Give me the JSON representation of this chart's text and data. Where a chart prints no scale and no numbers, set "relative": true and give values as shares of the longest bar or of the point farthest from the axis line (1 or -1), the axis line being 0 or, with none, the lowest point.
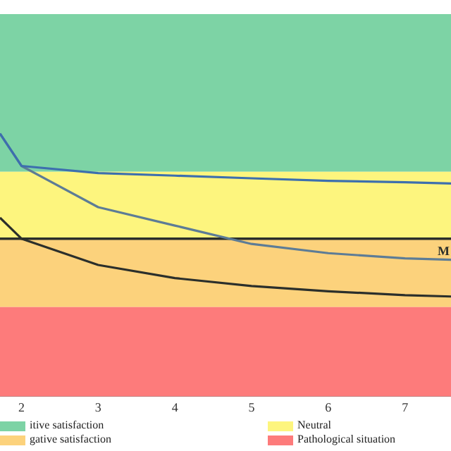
{
  "chart_data": {
    "type": "line",
    "relative": true,
    "x": [
      1.72,
      2,
      3,
      4,
      5,
      6,
      7,
      7.6
    ],
    "xlim": [
      1.72,
      7.6
    ],
    "xticks": [
      2,
      3,
      4,
      5,
      6,
      7
    ],
    "series": [
      {
        "color": "#3d6fae",
        "values": [
          1.0,
          0.877,
          0.85,
          0.84,
          0.83,
          0.82,
          0.815,
          0.81
        ]
      },
      {
        "color": "#5d7c96",
        "values": [
          1.0,
          0.877,
          0.72,
          0.65,
          0.58,
          0.545,
          0.525,
          0.52
        ]
      },
      {
        "color": "#2b2f2b",
        "values": [
          0.68,
          0.6,
          0.5,
          0.45,
          0.42,
          0.4,
          0.385,
          0.38
        ]
      }
    ],
    "bands": [
      {
        "axis": "y",
        "from": 0.855,
        "to": 1.455,
        "label": "itive satisfaction",
        "color": "#7dd3a5"
      },
      {
        "axis": "y",
        "from": 0.6,
        "to": 0.855,
        "label": "Neutral",
        "color": "#fdf57e"
      },
      {
        "axis": "y",
        "from": 0.34,
        "to": 0.6,
        "label": "gative satisfaction",
        "color": "#fcd27c"
      },
      {
        "axis": "y",
        "from": 0,
        "to": 0.34,
        "label": "Pathological situation",
        "color": "#fd7b7b"
      }
    ],
    "ref_lines": [
      {
        "axis": "y",
        "value": 0.6,
        "label": "M",
        "color": "#2b2f2b"
      }
    ],
    "legend": "bottom",
    "marker": "none",
    "line_style": "solid"
  }
}
